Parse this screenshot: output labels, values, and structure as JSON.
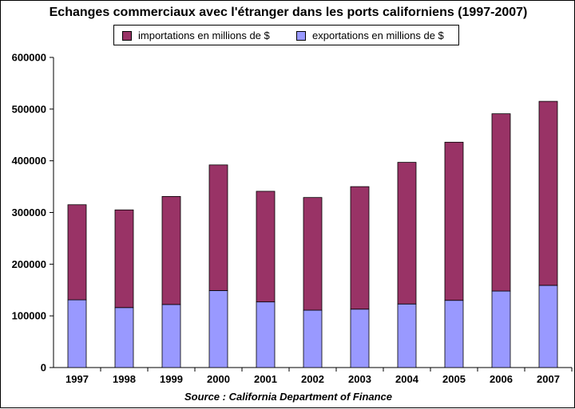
{
  "chart_data": {
    "type": "bar",
    "stacked": true,
    "title": "Echanges commerciaux avec l'étranger dans les ports californiens (1997-2007)",
    "source": "Source : California Department of Finance",
    "categories": [
      "1997",
      "1998",
      "1999",
      "2000",
      "2001",
      "2002",
      "2003",
      "2004",
      "2005",
      "2006",
      "2007"
    ],
    "series": [
      {
        "name": "exportations en millions de $",
        "color": "#9999ff",
        "values": [
          131000,
          116000,
          122000,
          149000,
          127000,
          111000,
          113000,
          123000,
          130000,
          148000,
          159000
        ]
      },
      {
        "name": "importations en millions de $",
        "color": "#993366",
        "values": [
          184000,
          189000,
          209000,
          243000,
          214000,
          218000,
          237000,
          274000,
          306000,
          343000,
          356000
        ]
      }
    ],
    "legend_order": [
      1,
      0
    ],
    "ylim": [
      0,
      600000
    ],
    "yticks": [
      "0",
      "100000",
      "200000",
      "300000",
      "400000",
      "500000",
      "600000"
    ],
    "grid": false,
    "legend_position": "top"
  }
}
